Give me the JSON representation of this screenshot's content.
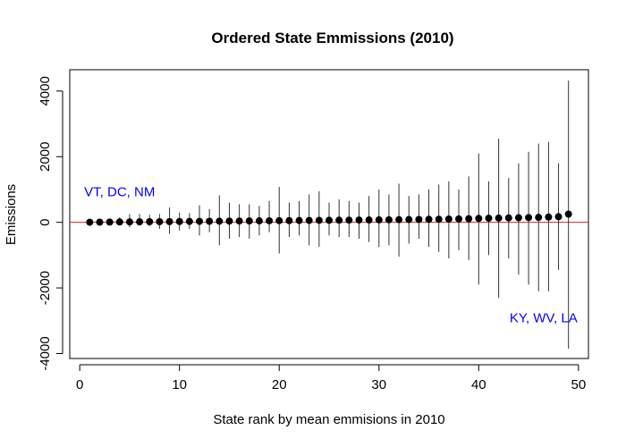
{
  "chart_data": {
    "type": "scatter",
    "title": "Ordered State Emmissions (2010)",
    "xlabel": "State rank by mean emmisions in 2010",
    "ylabel": "Emissions",
    "xlim": [
      -1,
      51
    ],
    "ylim": [
      -4150,
      4650
    ],
    "x_ticks": [
      0,
      10,
      20,
      30,
      40,
      50
    ],
    "y_ticks": [
      -4000,
      -2000,
      0,
      2000,
      4000
    ],
    "grid": false,
    "reference_line": {
      "y": 0,
      "color": "#dd2222"
    },
    "point_color": "#000000",
    "errorbar_color": "#333333",
    "series": [
      {
        "x": [
          1,
          2,
          3,
          4,
          5,
          6,
          7,
          8,
          9,
          10,
          11,
          12,
          13,
          14,
          15,
          16,
          17,
          18,
          19,
          20,
          21,
          22,
          23,
          24,
          25,
          26,
          27,
          28,
          29,
          30,
          31,
          32,
          33,
          34,
          35,
          36,
          37,
          38,
          39,
          40,
          41,
          42,
          43,
          44,
          45,
          46,
          47,
          48,
          49
        ],
        "y": [
          2,
          5,
          8,
          10,
          13,
          15,
          18,
          20,
          22,
          25,
          28,
          30,
          32,
          35,
          38,
          40,
          42,
          45,
          47,
          50,
          52,
          55,
          57,
          60,
          62,
          65,
          67,
          70,
          72,
          75,
          78,
          82,
          85,
          88,
          92,
          95,
          100,
          105,
          110,
          120,
          125,
          130,
          135,
          140,
          145,
          150,
          160,
          170,
          250
        ],
        "lower": [
          -20,
          -25,
          -40,
          -80,
          -150,
          -100,
          -120,
          -200,
          -350,
          -250,
          -200,
          -400,
          -300,
          -700,
          -500,
          -450,
          -500,
          -400,
          -300,
          -950,
          -450,
          -400,
          -700,
          -750,
          -400,
          -450,
          -450,
          -500,
          -600,
          -750,
          -700,
          -1050,
          -650,
          -500,
          -750,
          -900,
          -1100,
          -850,
          -1150,
          -1900,
          -1000,
          -2300,
          -1100,
          -1600,
          -1900,
          -2100,
          -2100,
          -1450,
          -3850
        ],
        "upper": [
          30,
          40,
          60,
          150,
          250,
          250,
          230,
          250,
          450,
          300,
          280,
          520,
          400,
          820,
          600,
          550,
          550,
          500,
          650,
          1080,
          600,
          650,
          850,
          950,
          600,
          700,
          650,
          600,
          800,
          1000,
          850,
          1180,
          800,
          850,
          1000,
          1150,
          1250,
          1000,
          1400,
          2100,
          1250,
          2550,
          1350,
          1800,
          2150,
          2400,
          2450,
          1800,
          4320
        ]
      }
    ],
    "annotations": [
      {
        "text": "VT, DC, NM",
        "x": 4,
        "y": 800,
        "color": "#0000ff"
      },
      {
        "text": "KY, WV, LA",
        "x": 46.5,
        "y": -3050,
        "color": "#0000ff"
      }
    ]
  }
}
